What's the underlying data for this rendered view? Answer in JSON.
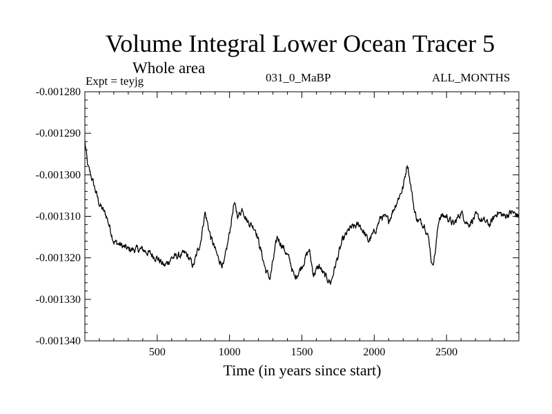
{
  "chart_data": {
    "type": "line",
    "title": "Volume Integral Lower Ocean Tracer 5",
    "subtitle": "Whole area",
    "labels": {
      "experiment": "Expt = teyjg",
      "run": "031_0_MaBP",
      "months": "ALL_MONTHS"
    },
    "xlabel": "Time (in years since start)",
    "ylabel": "",
    "xlim": [
      0,
      3000
    ],
    "ylim": [
      -0.00134,
      -0.00128
    ],
    "xticks": [
      500,
      1000,
      1500,
      2000,
      2500
    ],
    "xtick_labels": [
      "500",
      "1000",
      "1500",
      "2000",
      "2500"
    ],
    "yticks": [
      -0.00134,
      -0.00133,
      -0.00132,
      -0.00131,
      -0.0013,
      -0.00129,
      -0.00128
    ],
    "ytick_labels": [
      "-0.001340",
      "-0.001330",
      "-0.001320",
      "-0.001310",
      "-0.001300",
      "-0.001290",
      "-0.001280"
    ],
    "series": [
      {
        "name": "Lower Ocean Tracer 5",
        "noise_amplitude": 1.2e-06,
        "x": [
          0,
          20,
          50,
          100,
          150,
          200,
          300,
          400,
          500,
          550,
          600,
          700,
          750,
          800,
          830,
          870,
          920,
          960,
          1000,
          1030,
          1060,
          1090,
          1120,
          1180,
          1250,
          1280,
          1330,
          1380,
          1420,
          1450,
          1500,
          1550,
          1580,
          1620,
          1650,
          1700,
          1730,
          1780,
          1830,
          1900,
          1960,
          2000,
          2050,
          2100,
          2150,
          2200,
          2230,
          2250,
          2280,
          2300,
          2350,
          2380,
          2400,
          2420,
          2450,
          2500,
          2550,
          2600,
          2650,
          2700,
          2750,
          2800,
          2850,
          2900,
          2950,
          3000
        ],
        "y": [
          -0.001292,
          -0.001298,
          -0.001301,
          -0.001307,
          -0.00131,
          -0.001316,
          -0.001318,
          -0.001318,
          -0.00132,
          -0.001322,
          -0.00132,
          -0.001319,
          -0.001322,
          -0.001316,
          -0.001309,
          -0.001315,
          -0.00132,
          -0.001322,
          -0.001314,
          -0.001307,
          -0.00131,
          -0.001308,
          -0.001311,
          -0.001313,
          -0.001323,
          -0.001325,
          -0.001315,
          -0.001318,
          -0.001321,
          -0.001325,
          -0.001322,
          -0.001318,
          -0.001324,
          -0.001322,
          -0.001324,
          -0.001326,
          -0.001322,
          -0.001316,
          -0.001313,
          -0.001312,
          -0.001316,
          -0.001314,
          -0.00131,
          -0.001311,
          -0.001307,
          -0.001303,
          -0.001297,
          -0.001302,
          -0.001309,
          -0.001311,
          -0.001312,
          -0.001316,
          -0.001322,
          -0.001319,
          -0.00131,
          -0.00131,
          -0.001312,
          -0.001309,
          -0.001312,
          -0.00131,
          -0.001311,
          -0.001312,
          -0.001309,
          -0.00131,
          -0.001309,
          -0.00131
        ]
      }
    ]
  }
}
